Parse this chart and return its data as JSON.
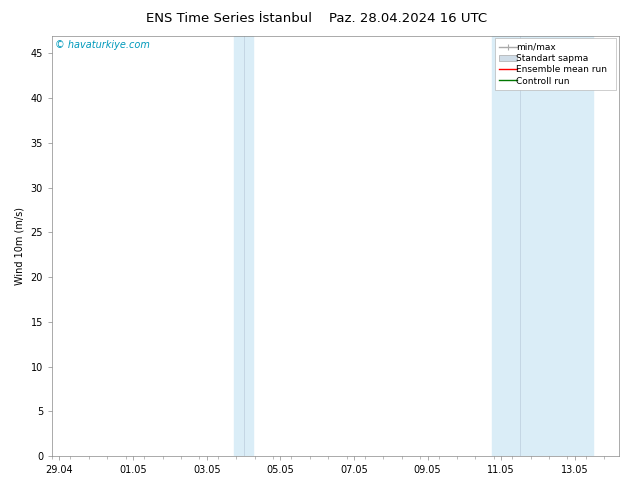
{
  "title": "ENS Time Series İstanbul    Paz. 28.04.2024 16 UTC",
  "ylabel": "Wind 10m (m/s)",
  "ylim": [
    0,
    47
  ],
  "yticks": [
    0,
    5,
    10,
    15,
    20,
    25,
    30,
    35,
    40,
    45
  ],
  "xtick_labels": [
    "29.04",
    "01.05",
    "03.05",
    "05.05",
    "07.05",
    "09.05",
    "11.05",
    "13.05"
  ],
  "xtick_positions": [
    0,
    2,
    4,
    6,
    8,
    10,
    12,
    14
  ],
  "xlim": [
    -0.2,
    15.2
  ],
  "watermark": "© havaturkiye.com",
  "watermark_color": "#0099BB",
  "bg_color": "#ffffff",
  "plot_bg_color": "#ffffff",
  "band1_x1": 4.75,
  "band1_x2": 5.25,
  "band1_mid": 5.0,
  "band2_x1": 11.75,
  "band2_x2": 14.5,
  "band2_mid": 12.5,
  "band_color": "#daedf7",
  "legend_items": [
    {
      "label": "min/max",
      "color": "#aaaaaa",
      "style": "line"
    },
    {
      "label": "Standart sapma",
      "color": "#ccddee",
      "style": "fill"
    },
    {
      "label": "Ensemble mean run",
      "color": "#ff0000",
      "style": "line"
    },
    {
      "label": "Controll run",
      "color": "#007700",
      "style": "line"
    }
  ],
  "title_fontsize": 9.5,
  "axis_fontsize": 7,
  "tick_fontsize": 7,
  "legend_fontsize": 6.5
}
